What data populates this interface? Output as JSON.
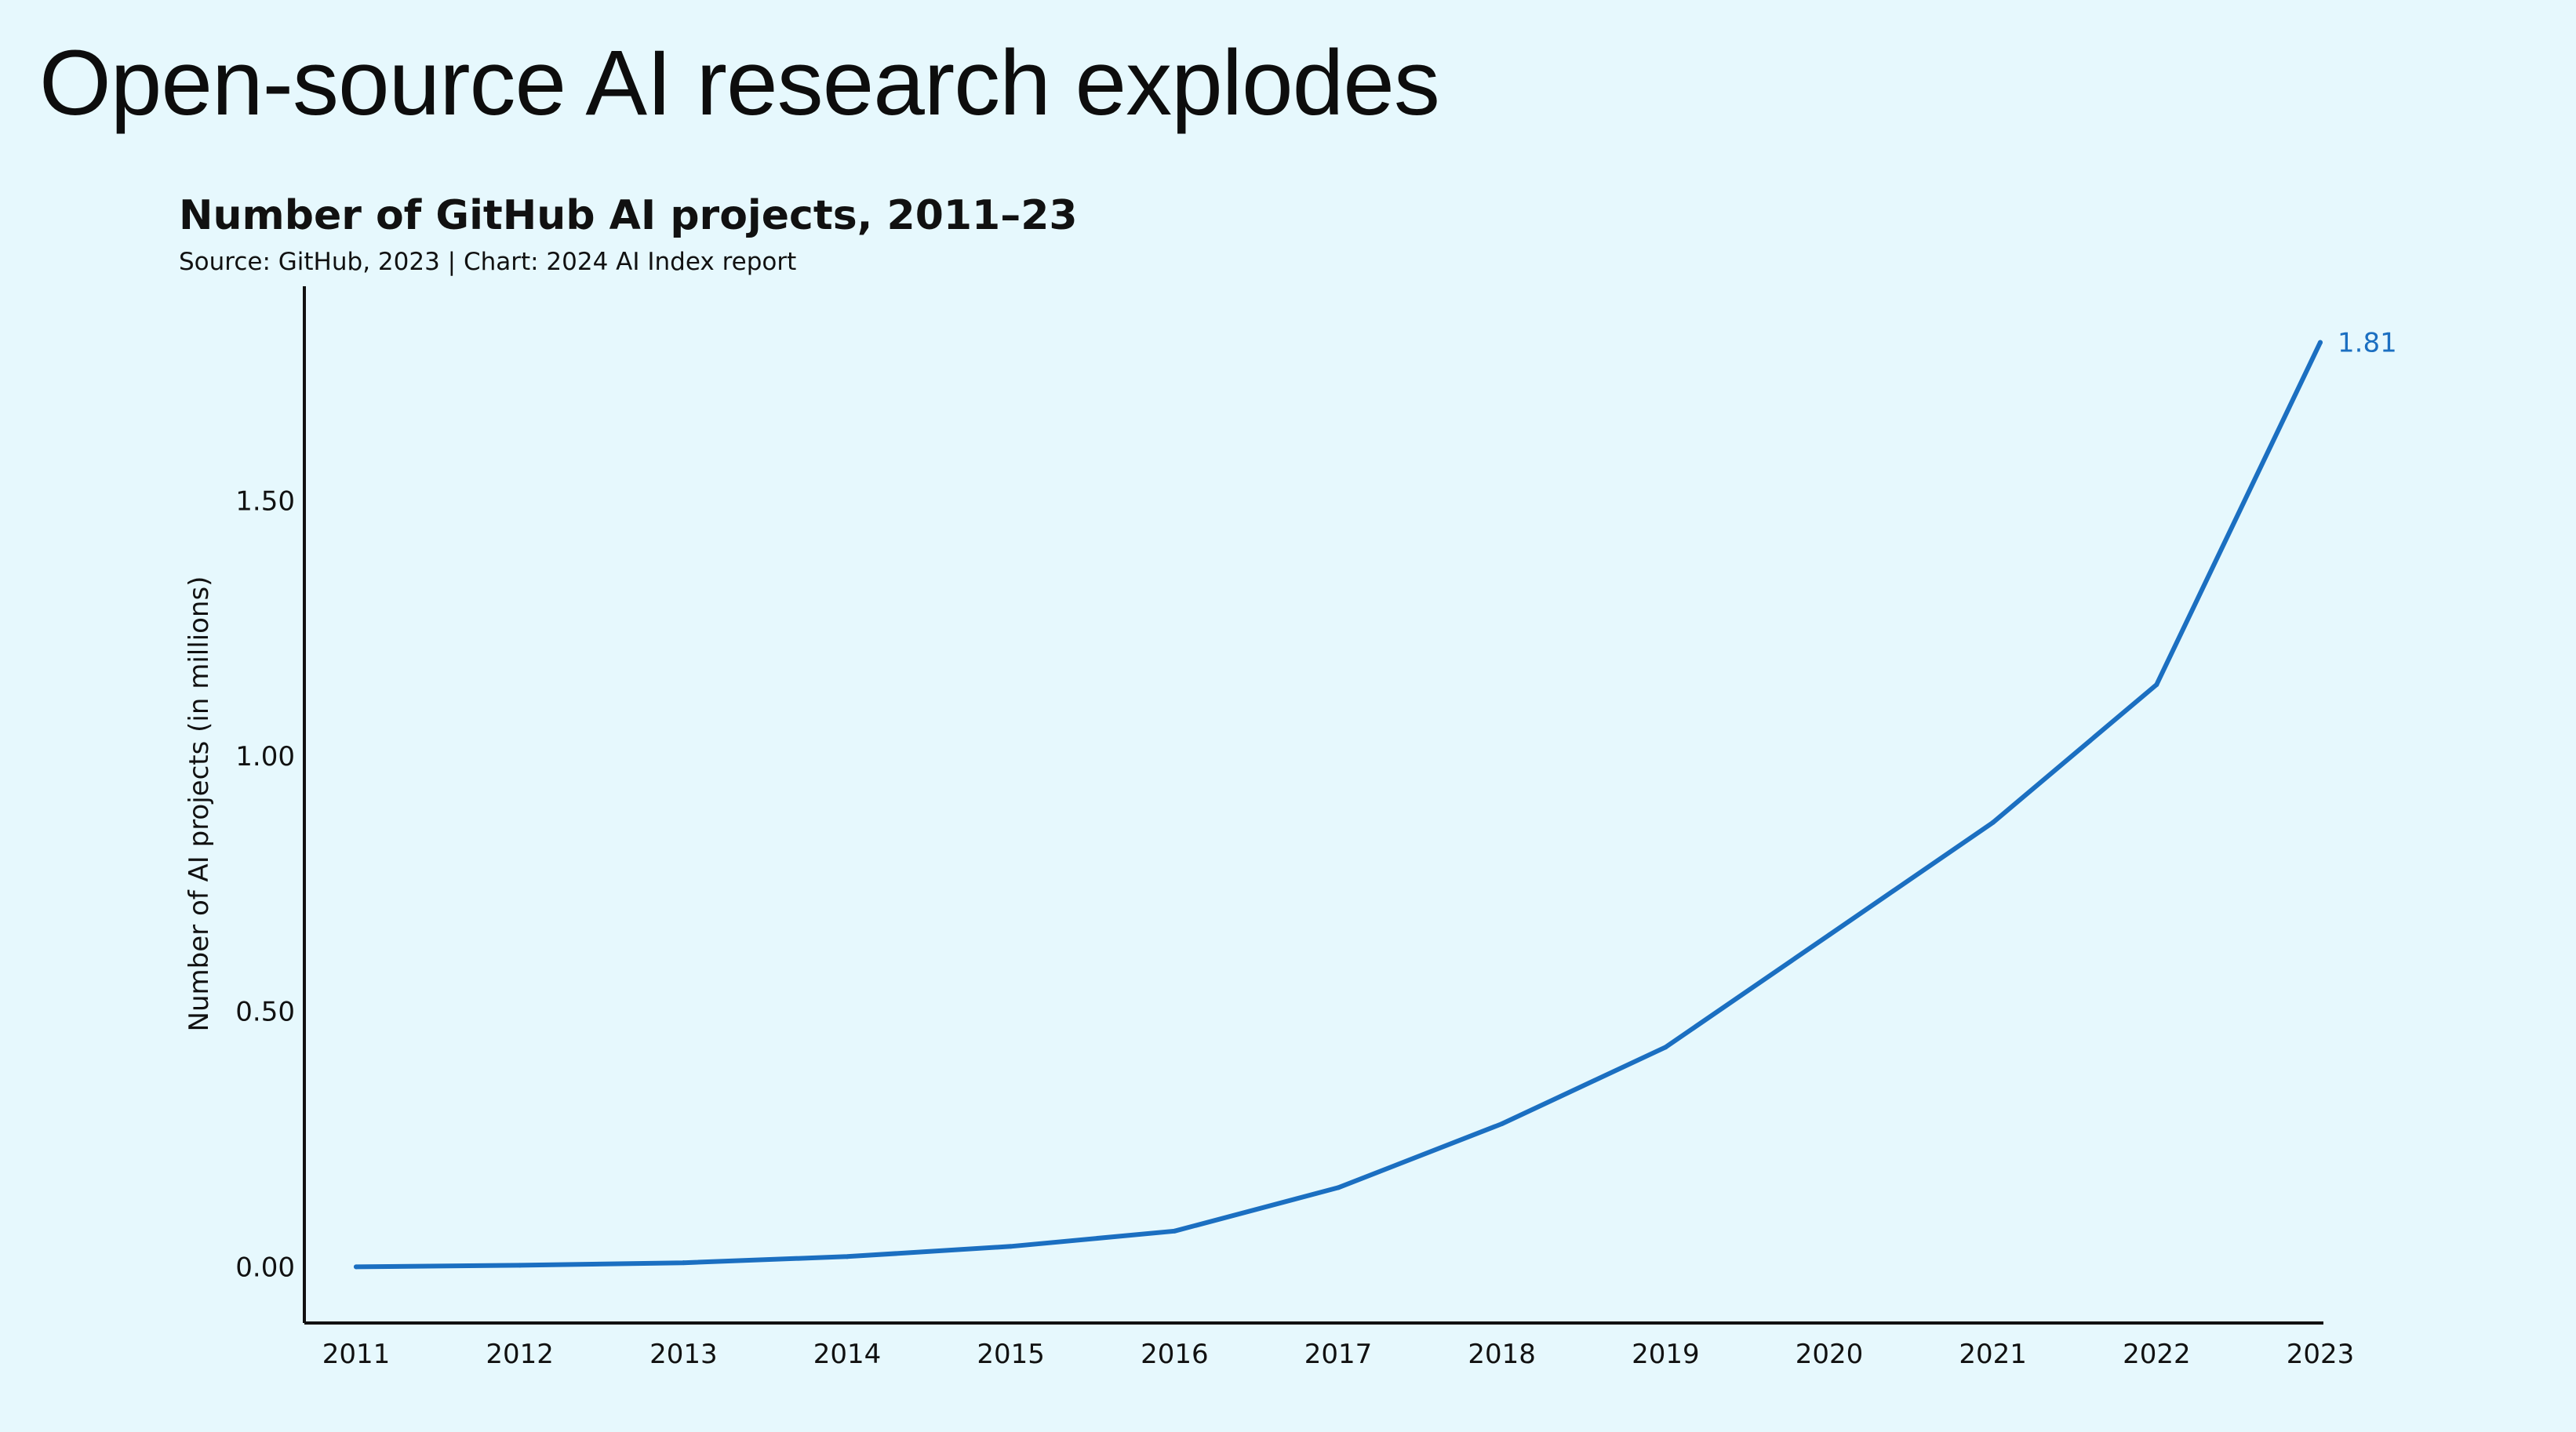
{
  "slide": {
    "title": "Open-source AI research explodes"
  },
  "colors": {
    "background": "#e6f8fd",
    "line": "#1b6fc1",
    "axis": "#111111"
  },
  "chart_data": {
    "type": "line",
    "title": "Number of GitHub AI projects, 2011–23",
    "subtitle": "Source: GitHub, 2023 | Chart: 2024 AI Index report",
    "xlabel": "",
    "ylabel": "Number of AI projects (in millions)",
    "x": [
      "2011",
      "2012",
      "2013",
      "2014",
      "2015",
      "2016",
      "2017",
      "2018",
      "2019",
      "2020",
      "2021",
      "2022",
      "2023"
    ],
    "series": [
      {
        "values": [
          0.0,
          0.003,
          0.008,
          0.02,
          0.04,
          0.07,
          0.155,
          0.28,
          0.43,
          0.65,
          0.87,
          1.14,
          1.81
        ]
      }
    ],
    "yticks": [
      "0.00",
      "0.50",
      "1.00",
      "1.50"
    ],
    "ylim": [
      -0.11,
      1.92
    ],
    "end_label": "1.81",
    "grid": false,
    "legend": "none"
  }
}
